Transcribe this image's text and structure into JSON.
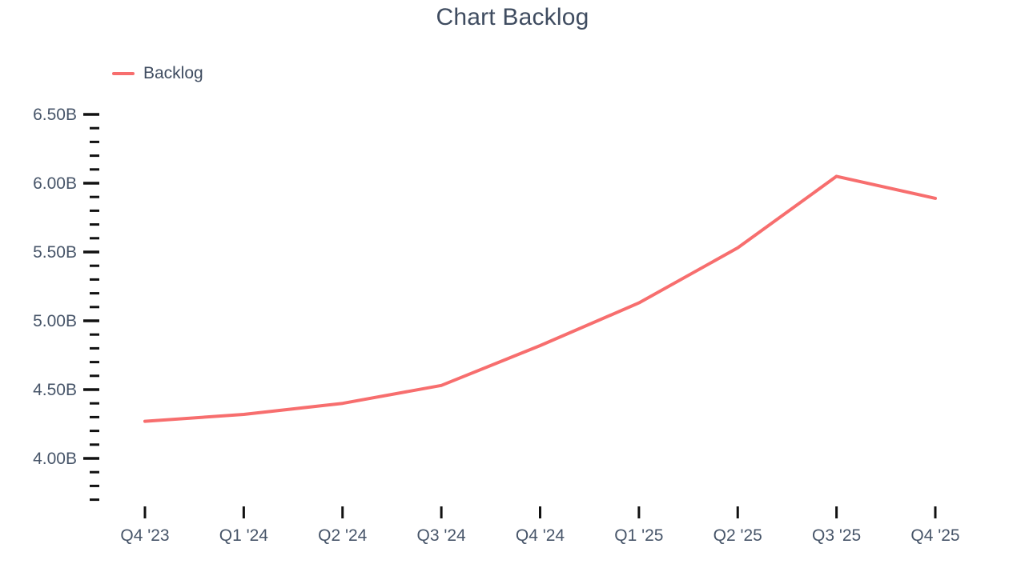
{
  "page": {
    "title": "Chart Backlog"
  },
  "legend": {
    "items": [
      {
        "label": "Backlog",
        "color": "#f76e6e"
      }
    ]
  },
  "colors": {
    "title_text": "#3f4c60",
    "axis_label_text": "#475569",
    "tick_mark": "#111111",
    "series_line": "#f76e6e",
    "background": "#ffffff"
  },
  "chart_data": {
    "type": "line",
    "title": "Chart Backlog",
    "categories": [
      "Q4 '23",
      "Q1 '24",
      "Q2 '24",
      "Q3 '24",
      "Q4 '24",
      "Q1 '25",
      "Q2 '25",
      "Q3 '25",
      "Q4 '25"
    ],
    "series": [
      {
        "name": "Backlog",
        "color": "#f76e6e",
        "values": [
          4.27,
          4.32,
          4.4,
          4.53,
          4.82,
          5.13,
          5.53,
          6.05,
          5.89
        ]
      }
    ],
    "unit": "B",
    "xlabel": "",
    "ylabel": "",
    "ylim": [
      3.7,
      6.5
    ],
    "y_major_ticks": [
      {
        "value": 4.0,
        "label": "4.00B"
      },
      {
        "value": 4.5,
        "label": "4.50B"
      },
      {
        "value": 5.0,
        "label": "5.00B"
      },
      {
        "value": 5.5,
        "label": "5.50B"
      },
      {
        "value": 6.0,
        "label": "6.00B"
      },
      {
        "value": 6.5,
        "label": "6.50B"
      }
    ],
    "y_minor_step": 0.1,
    "grid": false,
    "legend_position": "top-left"
  }
}
